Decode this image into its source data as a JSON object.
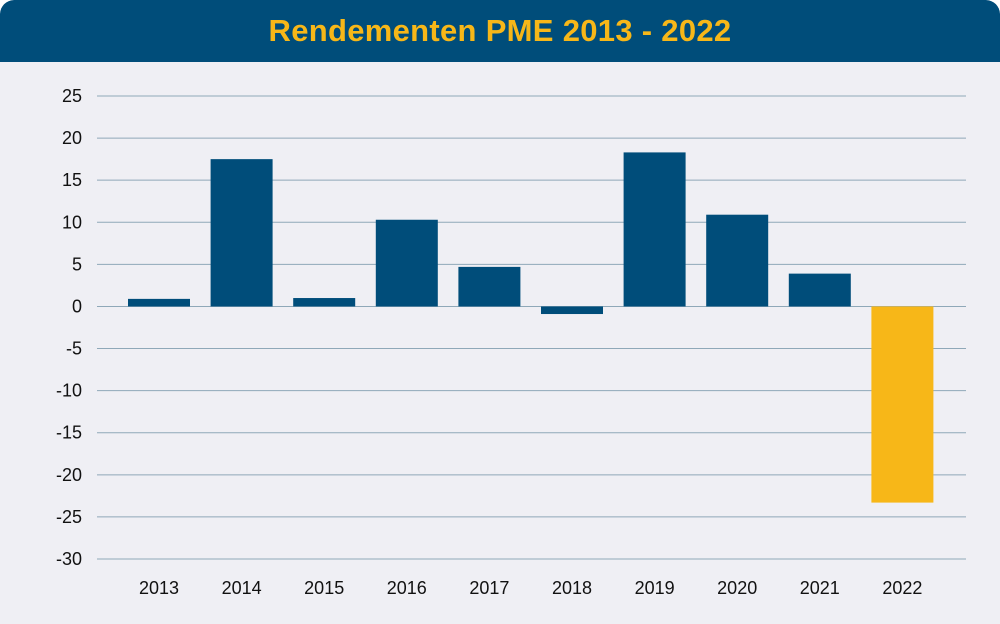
{
  "chart_data": {
    "type": "bar",
    "title": "Rendementen PME 2013 - 2022",
    "xlabel": "",
    "ylabel": "",
    "categories": [
      "2013",
      "2014",
      "2015",
      "2016",
      "2017",
      "2018",
      "2019",
      "2020",
      "2021",
      "2022"
    ],
    "values": [
      0.9,
      17.5,
      1.0,
      10.3,
      4.7,
      -0.9,
      18.3,
      10.9,
      3.9,
      -23.3
    ],
    "ylim": [
      -30,
      25
    ],
    "yticks": [
      25,
      20,
      15,
      10,
      5,
      0,
      -5,
      -10,
      -15,
      -20,
      -25,
      -30
    ],
    "grid": true,
    "colors": {
      "bar": "#004d7a",
      "highlight": "#f7b718",
      "header": "#004d7a",
      "title": "#f7b718",
      "background": "#efeff4",
      "grid": "#8fa8b8"
    },
    "highlight_index": 9
  }
}
